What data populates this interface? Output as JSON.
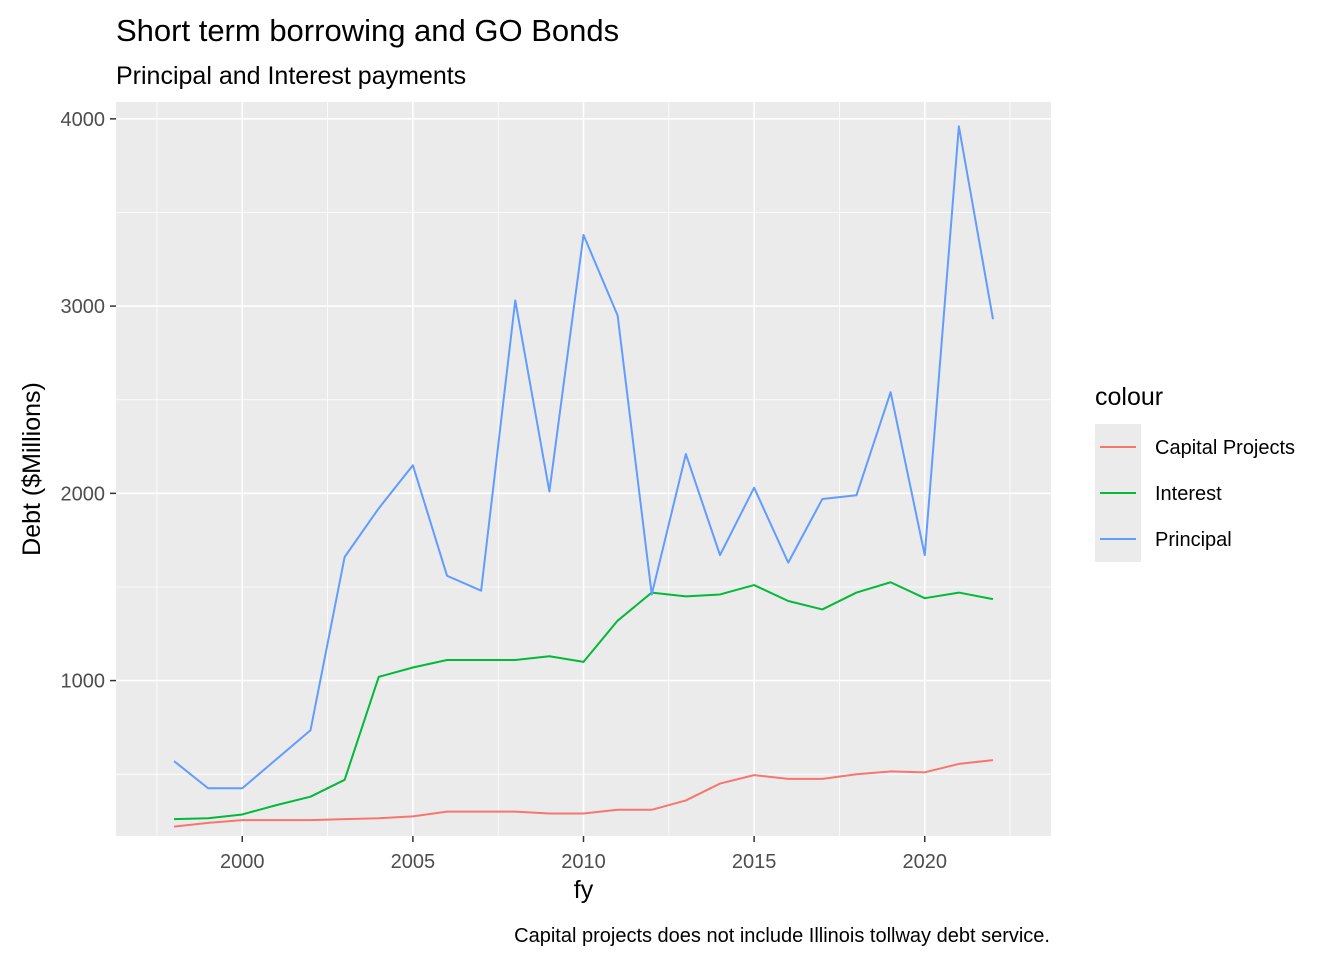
{
  "chart_data": {
    "type": "line",
    "title": "Short term borrowing and GO Bonds",
    "subtitle": "Principal and Interest payments",
    "xlabel": "fy",
    "ylabel": "Debt ($Millions)",
    "caption": "Capital projects does not include Illinois tollway debt service.",
    "legend_title": "colour",
    "legend_position": "right",
    "grid": true,
    "xlim": [
      1996.3,
      2023.7
    ],
    "ylim": [
      170,
      4090
    ],
    "x_ticks": [
      2000,
      2005,
      2010,
      2015,
      2020
    ],
    "x_tick_labels": [
      "2000",
      "2005",
      "2010",
      "2015",
      "2020"
    ],
    "y_ticks": [
      1000,
      2000,
      3000,
      4000
    ],
    "y_tick_labels": [
      "1000",
      "2000",
      "3000",
      "4000"
    ],
    "x": [
      1998,
      1999,
      2000,
      2001,
      2002,
      2003,
      2004,
      2005,
      2006,
      2007,
      2008,
      2009,
      2010,
      2011,
      2012,
      2013,
      2014,
      2015,
      2016,
      2017,
      2018,
      2019,
      2020,
      2021,
      2022
    ],
    "series": [
      {
        "name": "Capital Projects",
        "color": "#F8766D",
        "values": [
          220,
          240,
          255,
          255,
          255,
          260,
          265,
          275,
          300,
          300,
          300,
          290,
          290,
          310,
          310,
          360,
          450,
          495,
          475,
          475,
          500,
          515,
          510,
          555,
          575
        ]
      },
      {
        "name": "Interest",
        "color": "#00BA38",
        "values": [
          260,
          265,
          285,
          335,
          380,
          470,
          1020,
          1070,
          1110,
          1110,
          1110,
          1130,
          1100,
          1320,
          1470,
          1450,
          1460,
          1510,
          1425,
          1380,
          1470,
          1525,
          1440,
          1470,
          1435
        ]
      },
      {
        "name": "Principal",
        "color": "#619CFF",
        "values": [
          570,
          425,
          425,
          580,
          735,
          1660,
          1920,
          2150,
          1560,
          1480,
          3030,
          2010,
          3380,
          2950,
          1460,
          2210,
          1670,
          2030,
          1630,
          1970,
          1990,
          2540,
          1670,
          3960,
          2930
        ]
      }
    ]
  }
}
